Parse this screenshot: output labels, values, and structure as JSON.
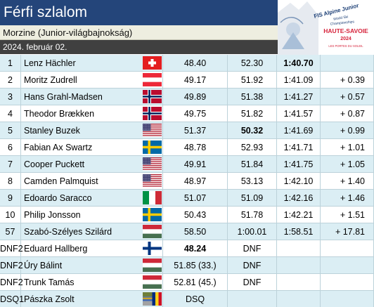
{
  "header": {
    "title": "Férfi szlalom",
    "location": "Morzine (Junior-világbajnokság)",
    "date": "2024. február 02."
  },
  "logo": {
    "line1": "FIS Alpine Junior",
    "line2": "World Ski",
    "line3": "Championships",
    "host": "HAUTE-SAVOIE",
    "year": "2024",
    "subtitle": "LES PORTES DU SOLEIL"
  },
  "results": [
    {
      "rank": "1",
      "name": "Lenz Hächler",
      "flag": "switzerland",
      "run1": "48.40",
      "run2": "52.30",
      "total": "1:40.70",
      "diff": "",
      "total_bold": true
    },
    {
      "rank": "2",
      "name": "Moritz Zudrell",
      "flag": "austria",
      "run1": "49.17",
      "run2": "51.92",
      "total": "1:41.09",
      "diff": "+ 0.39"
    },
    {
      "rank": "3",
      "name": "Hans Grahl-Madsen",
      "flag": "norway",
      "run1": "49.89",
      "run2": "51.38",
      "total": "1:41.27",
      "diff": "+ 0.57"
    },
    {
      "rank": "4",
      "name": "Theodor Brækken",
      "flag": "norway",
      "run1": "49.75",
      "run2": "51.82",
      "total": "1:41.57",
      "diff": "+ 0.87"
    },
    {
      "rank": "5",
      "name": "Stanley Buzek",
      "flag": "usa",
      "run1": "51.37",
      "run2": "50.32",
      "total": "1:41.69",
      "diff": "+ 0.99",
      "run2_bold": true
    },
    {
      "rank": "6",
      "name": "Fabian Ax Swartz",
      "flag": "sweden",
      "run1": "48.78",
      "run2": "52.93",
      "total": "1:41.71",
      "diff": "+ 1.01"
    },
    {
      "rank": "7",
      "name": "Cooper Puckett",
      "flag": "usa",
      "run1": "49.91",
      "run2": "51.84",
      "total": "1:41.75",
      "diff": "+ 1.05"
    },
    {
      "rank": "8",
      "name": "Camden Palmquist",
      "flag": "usa",
      "run1": "48.97",
      "run2": "53.13",
      "total": "1:42.10",
      "diff": "+ 1.40"
    },
    {
      "rank": "9",
      "name": "Edoardo Saracco",
      "flag": "italy",
      "run1": "51.07",
      "run2": "51.09",
      "total": "1:42.16",
      "diff": "+ 1.46"
    },
    {
      "rank": "10",
      "name": "Philip Jonsson",
      "flag": "sweden",
      "run1": "50.43",
      "run2": "51.78",
      "total": "1:42.21",
      "diff": "+ 1.51"
    },
    {
      "rank": "57",
      "name": "Szabó-Szélyes Szilárd",
      "flag": "hungary",
      "run1": "58.50",
      "run2": "1:00.01",
      "total": "1:58.51",
      "diff": "+ 17.81"
    },
    {
      "rank": "DNF2",
      "name": "Eduard Hallberg",
      "flag": "finland",
      "run1": "48.24",
      "run2": "DNF",
      "total": "",
      "diff": "",
      "run1_bold": true
    },
    {
      "rank": "DNF2",
      "name": "Úry Bálint",
      "flag": "hungary",
      "run1": "51.85 (33.)",
      "run2": "DNF",
      "total": "",
      "diff": ""
    },
    {
      "rank": "DNF2",
      "name": "Trunk Tamás",
      "flag": "hungary",
      "run1": "52.81 (45.)",
      "run2": "DNF",
      "total": "",
      "diff": ""
    },
    {
      "rank": "DSQ1",
      "name": "Pászka Zsolt",
      "flag": "romania-hungary",
      "run1": "DSQ",
      "run2": "",
      "total": "",
      "diff": ""
    }
  ]
}
